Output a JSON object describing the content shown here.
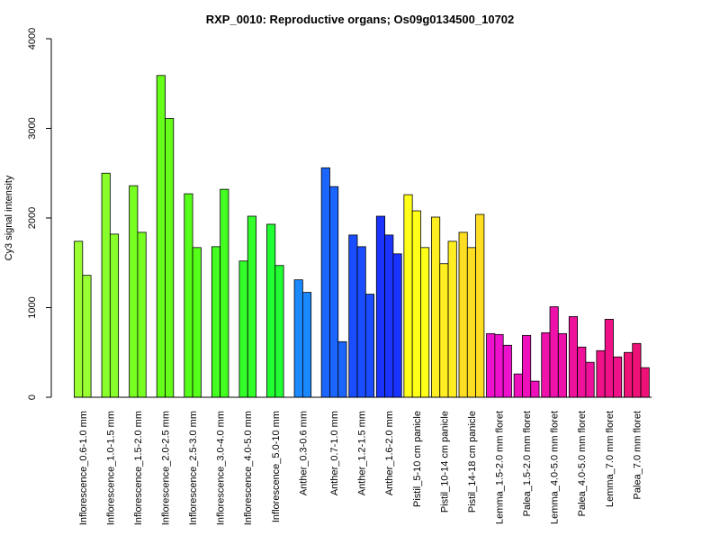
{
  "chart_data": {
    "type": "bar",
    "title": "RXP_0010: Reproductive organs; Os09g0134500_10702",
    "xlabel": "",
    "ylabel": "Cy3 signal intensity",
    "ylim": [
      0,
      4000
    ],
    "yticks": [
      0,
      1000,
      2000,
      3000,
      4000
    ],
    "grid": false,
    "legend": "none",
    "groups": [
      {
        "label": "Inflorescence_0.6-1.0 mm",
        "color": "#99ff33",
        "values": [
          1740,
          1360
        ]
      },
      {
        "label": "Inflorescence_1.0-1.5 mm",
        "color": "#88ff2a",
        "values": [
          2500,
          1820
        ]
      },
      {
        "label": "Inflorescence_1.5-2.0 mm",
        "color": "#77ff22",
        "values": [
          2360,
          1840
        ]
      },
      {
        "label": "Inflorescence_2.0-2.5 mm",
        "color": "#66ff1a",
        "values": [
          3590,
          3110
        ]
      },
      {
        "label": "Inflorescence_2.5-3.0 mm",
        "color": "#55ff1a",
        "values": [
          2270,
          1670
        ]
      },
      {
        "label": "Inflorescence_3.0-4.0 mm",
        "color": "#44ff22",
        "values": [
          1680,
          2320
        ]
      },
      {
        "label": "Inflorescence_4.0-5.0 mm",
        "color": "#33ff2a",
        "values": [
          1520,
          2020
        ]
      },
      {
        "label": "Inflorescence_5.0-10 mm",
        "color": "#22ff33",
        "values": [
          1930,
          1470
        ]
      },
      {
        "label": "Anther_0.3-0.6 mm",
        "color": "#1a88ff",
        "values": [
          1310,
          1170
        ]
      },
      {
        "label": "Anther_0.7-1.0 mm",
        "color": "#1a66ff",
        "values": [
          2560,
          2350,
          620
        ]
      },
      {
        "label": "Anther_1.2-1.5 mm",
        "color": "#1a4dff",
        "values": [
          1810,
          1680,
          1150
        ]
      },
      {
        "label": "Anther_1.6-2.0 mm",
        "color": "#1a33ff",
        "values": [
          2020,
          1810,
          1600
        ]
      },
      {
        "label": "Pistil_5-10 cm panicle",
        "color": "#ffff1a",
        "values": [
          2260,
          2080,
          1670
        ]
      },
      {
        "label": "Pistil_10-14 cm panicle",
        "color": "#ffee22",
        "values": [
          2010,
          1490,
          1740
        ]
      },
      {
        "label": "Pistil_14-18 cm panicle",
        "color": "#ffdd22",
        "values": [
          1840,
          1670,
          2040
        ]
      },
      {
        "label": "Lemma_1.5-2.0 mm floret",
        "color": "#ee11cc",
        "values": [
          710,
          700,
          580
        ]
      },
      {
        "label": "Palea_1.5-2.0 mm floret",
        "color": "#ee11bb",
        "values": [
          260,
          690,
          180
        ]
      },
      {
        "label": "Lemma_4.0-5.0 mm floret",
        "color": "#ee11aa",
        "values": [
          720,
          1010,
          710
        ]
      },
      {
        "label": "Palea_4.0-5.0 mm floret",
        "color": "#ee1199",
        "values": [
          900,
          560,
          390
        ]
      },
      {
        "label": "Lemma_7.0 mm floret",
        "color": "#ee1188",
        "values": [
          520,
          870,
          450
        ]
      },
      {
        "label": "Palea_7.0 mm floret",
        "color": "#ee1177",
        "values": [
          500,
          600,
          330
        ]
      }
    ]
  }
}
